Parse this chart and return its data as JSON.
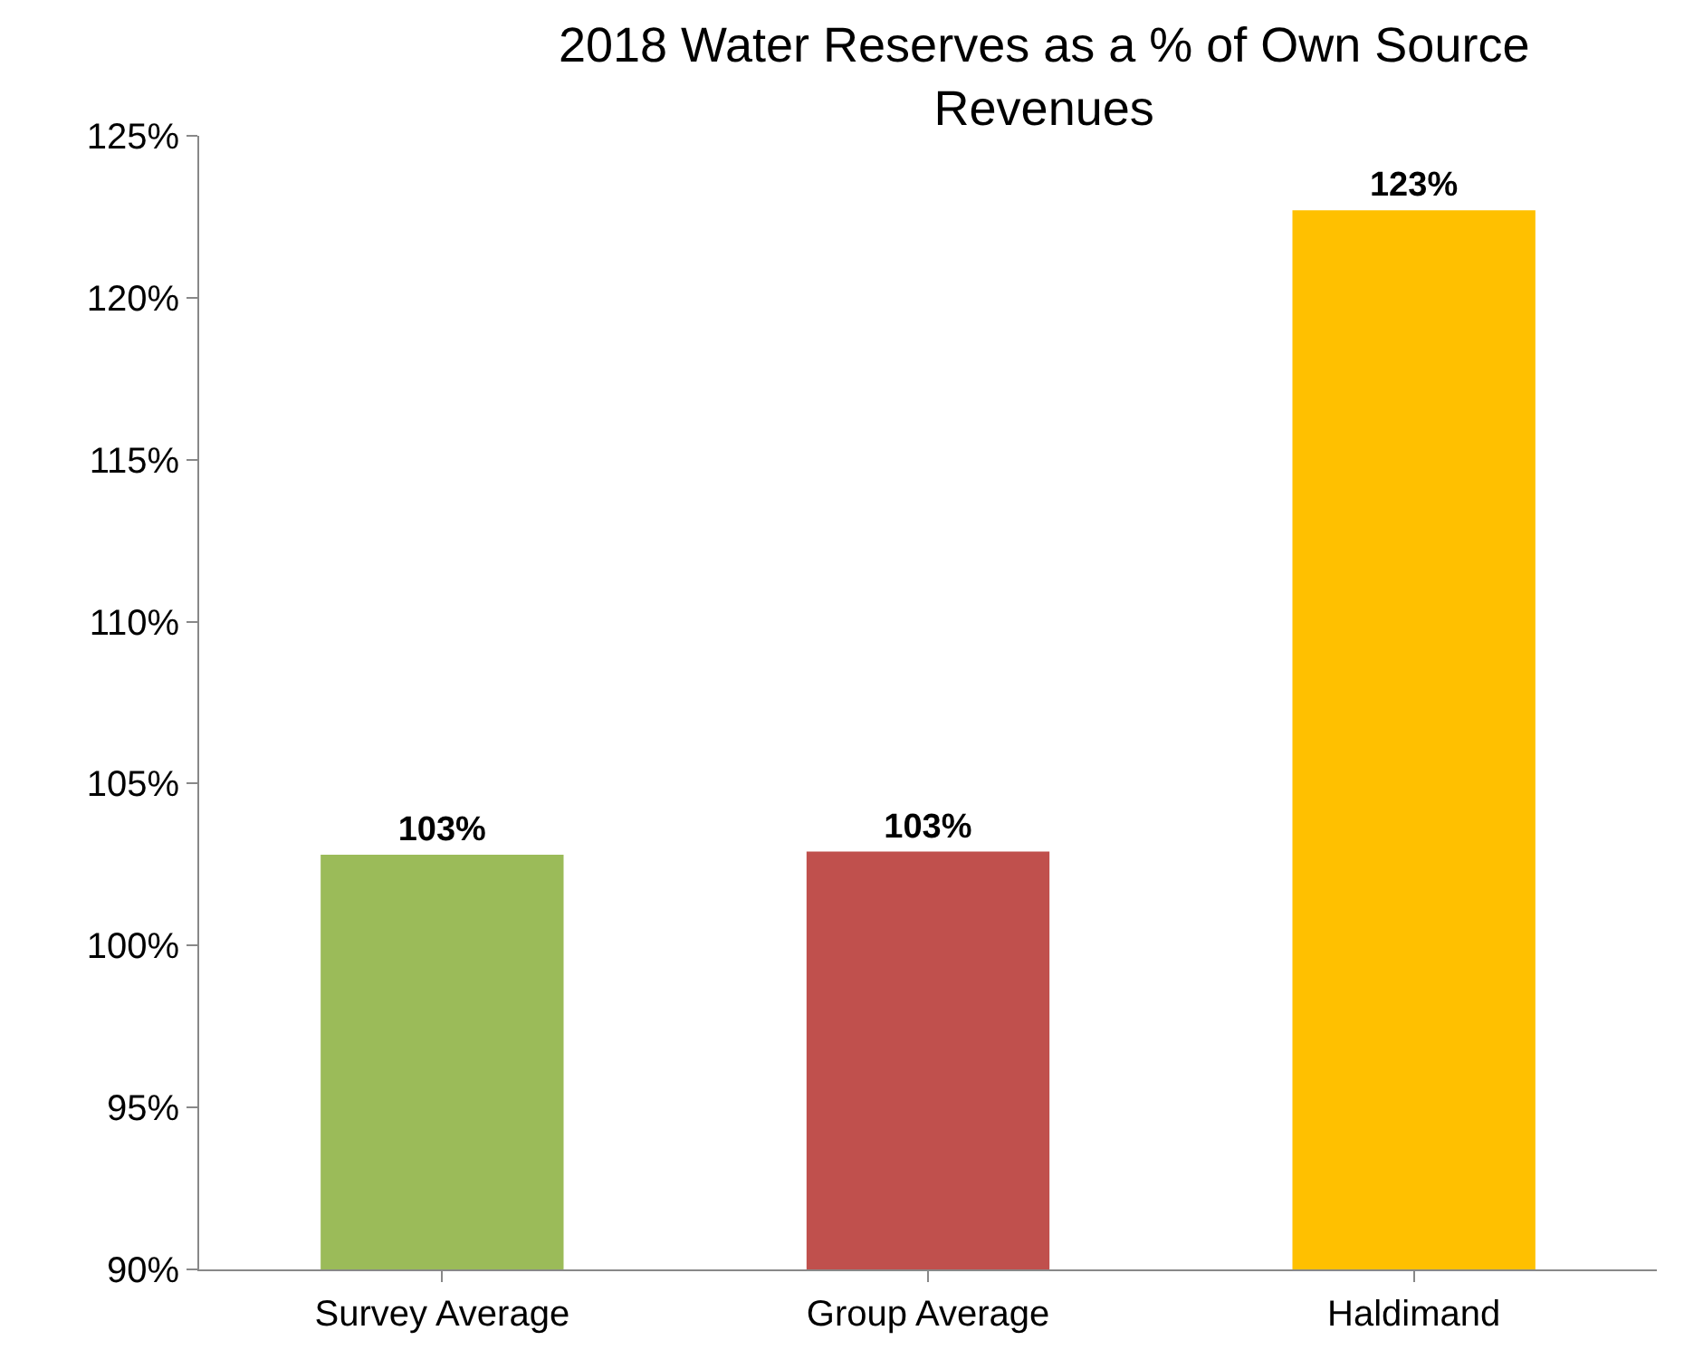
{
  "chart_data": {
    "type": "bar",
    "title": "2018 Water Reserves as a % of Own Source Revenues",
    "categories": [
      "Survey Average",
      "Group Average",
      "Haldimand"
    ],
    "values": [
      102.8,
      102.9,
      122.7
    ],
    "value_labels": [
      "103%",
      "103%",
      "123%"
    ],
    "colors": [
      "#9bbb59",
      "#c0504d",
      "#ffc000"
    ],
    "ylim": [
      90,
      125
    ],
    "yticks": [
      {
        "value": 90,
        "label": "90%"
      },
      {
        "value": 95,
        "label": "95%"
      },
      {
        "value": 100,
        "label": "100%"
      },
      {
        "value": 105,
        "label": "105%"
      },
      {
        "value": 110,
        "label": "110%"
      },
      {
        "value": 115,
        "label": "115%"
      },
      {
        "value": 120,
        "label": "120%"
      },
      {
        "value": 125,
        "label": "125%"
      }
    ]
  }
}
